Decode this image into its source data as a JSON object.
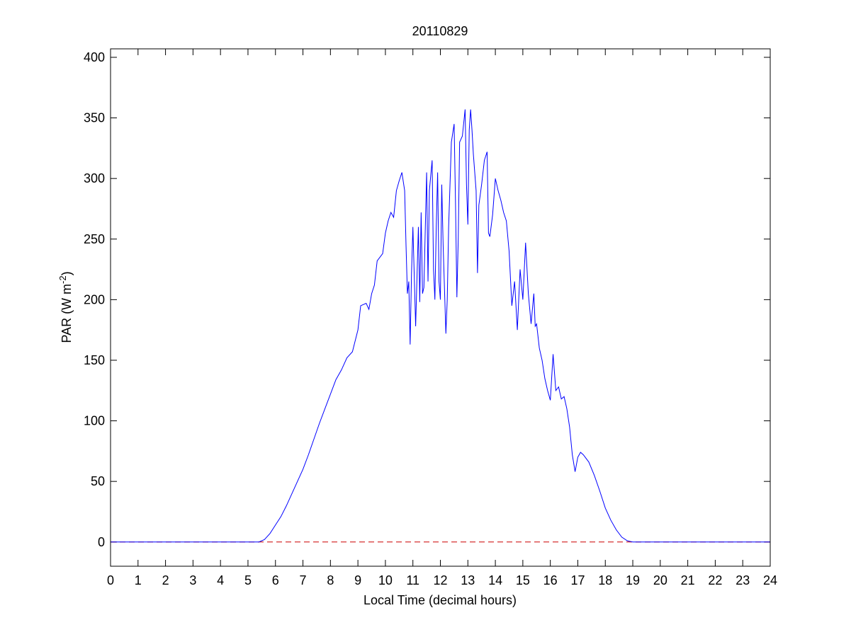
{
  "chart_data": {
    "type": "line",
    "title": "20110829",
    "xlabel": "Local Time (decimal hours)",
    "ylabel": {
      "text": "PAR (W m",
      "superscript": "-2",
      "suffix": ")"
    },
    "xlim": [
      0,
      24
    ],
    "xticks": [
      0,
      1,
      2,
      3,
      4,
      5,
      6,
      7,
      8,
      9,
      10,
      11,
      12,
      13,
      14,
      15,
      16,
      17,
      18,
      19,
      20,
      21,
      22,
      23,
      24
    ],
    "ylim": [
      -20,
      407
    ],
    "yticks": [
      0,
      50,
      100,
      150,
      200,
      250,
      300,
      350,
      400
    ],
    "grid": false,
    "series": [
      {
        "color": "#0000ff",
        "dashed": false,
        "x": [
          0,
          5.4,
          5.6,
          5.8,
          6.0,
          6.2,
          6.4,
          6.6,
          6.8,
          7.0,
          7.2,
          7.4,
          7.6,
          7.8,
          8.0,
          8.2,
          8.4,
          8.6,
          8.8,
          9.0,
          9.1,
          9.3,
          9.4,
          9.5,
          9.6,
          9.7,
          9.9,
          10.0,
          10.1,
          10.2,
          10.3,
          10.4,
          10.5,
          10.6,
          10.7,
          10.75,
          10.8,
          10.85,
          10.9,
          10.95,
          11.0,
          11.1,
          11.2,
          11.25,
          11.3,
          11.35,
          11.4,
          11.5,
          11.55,
          11.6,
          11.7,
          11.75,
          11.8,
          11.85,
          11.9,
          11.95,
          12.0,
          12.05,
          12.1,
          12.2,
          12.25,
          12.3,
          12.4,
          12.5,
          12.55,
          12.6,
          12.65,
          12.7,
          12.8,
          12.9,
          12.95,
          13.0,
          13.05,
          13.1,
          13.15,
          13.2,
          13.3,
          13.35,
          13.4,
          13.5,
          13.6,
          13.7,
          13.75,
          13.8,
          13.9,
          14.0,
          14.1,
          14.2,
          14.3,
          14.4,
          14.5,
          14.6,
          14.7,
          14.8,
          14.9,
          15.0,
          15.1,
          15.2,
          15.3,
          15.4,
          15.45,
          15.5,
          15.6,
          15.7,
          15.8,
          15.9,
          16.0,
          16.1,
          16.2,
          16.3,
          16.4,
          16.5,
          16.6,
          16.7,
          16.8,
          16.9,
          17.0,
          17.1,
          17.2,
          17.4,
          17.6,
          17.8,
          18.0,
          18.2,
          18.4,
          18.6,
          18.8,
          19.0,
          24
        ],
        "values": [
          0,
          0,
          2,
          7,
          14,
          21,
          30,
          40,
          50,
          60,
          72,
          85,
          98,
          110,
          122,
          134,
          142,
          152,
          157,
          175,
          195,
          197,
          192,
          205,
          212,
          232,
          238,
          255,
          265,
          272,
          268,
          290,
          298,
          305,
          290,
          245,
          205,
          215,
          163,
          222,
          260,
          178,
          260,
          198,
          272,
          205,
          210,
          305,
          215,
          290,
          315,
          225,
          200,
          260,
          305,
          215,
          200,
          295,
          245,
          172,
          200,
          260,
          330,
          345,
          280,
          202,
          250,
          330,
          335,
          357,
          295,
          262,
          340,
          357,
          340,
          320,
          290,
          222,
          278,
          295,
          315,
          322,
          255,
          252,
          270,
          300,
          290,
          282,
          272,
          265,
          240,
          195,
          215,
          175,
          225,
          200,
          247,
          205,
          180,
          205,
          178,
          180,
          160,
          150,
          135,
          125,
          117,
          155,
          125,
          128,
          118,
          120,
          110,
          95,
          72,
          58,
          70,
          74,
          72,
          66,
          55,
          42,
          28,
          18,
          10,
          4,
          1,
          0,
          0
        ]
      },
      {
        "color": "#cc0000",
        "dashed": true,
        "x": [
          0,
          24
        ],
        "values": [
          0,
          0
        ]
      }
    ]
  }
}
